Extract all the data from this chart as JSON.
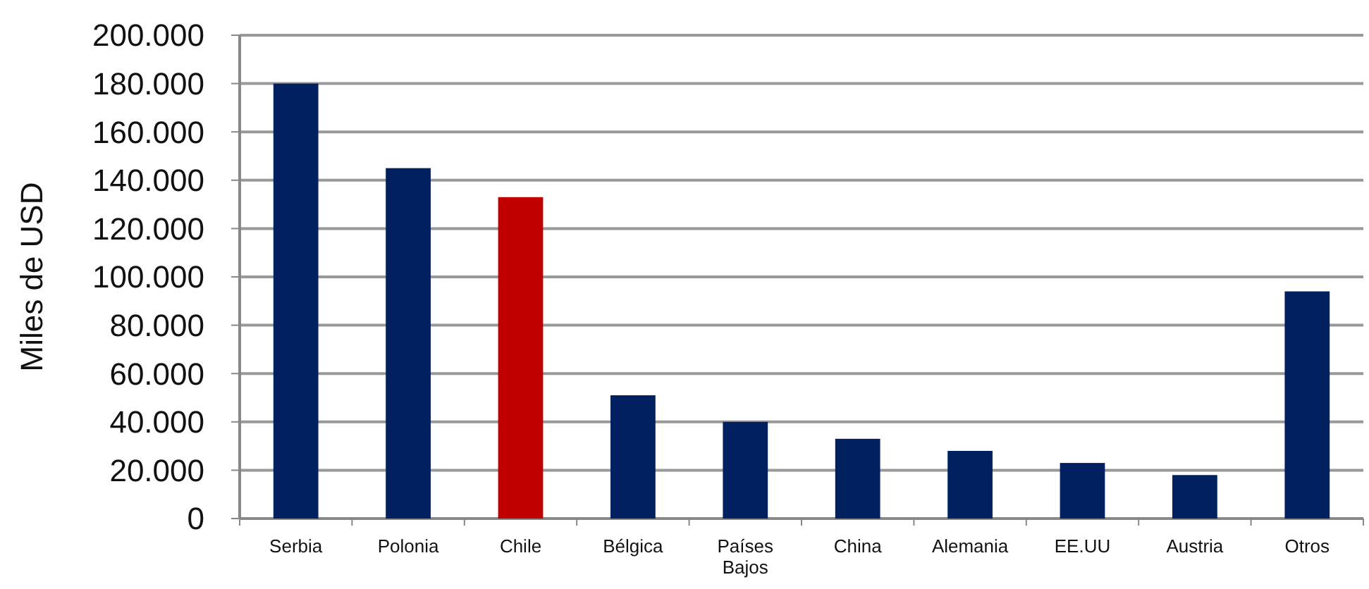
{
  "chart_data": {
    "type": "bar",
    "ylabel": "Miles de USD",
    "categories": [
      "Serbia",
      "Polonia",
      "Chile",
      "Bélgica",
      "Países Bajos",
      "China",
      "Alemania",
      "EE.UU",
      "Austria",
      "Otros"
    ],
    "values": [
      180000,
      145000,
      133000,
      51000,
      40000,
      33000,
      28000,
      23000,
      18000,
      94000
    ],
    "colors": [
      "#002060",
      "#002060",
      "#c00000",
      "#002060",
      "#002060",
      "#002060",
      "#002060",
      "#002060",
      "#002060",
      "#002060"
    ],
    "ylim": [
      0,
      200000
    ],
    "yticks": [
      {
        "value": 0,
        "label": "0"
      },
      {
        "value": 20000,
        "label": "20.000"
      },
      {
        "value": 40000,
        "label": "40.000"
      },
      {
        "value": 60000,
        "label": "60.000"
      },
      {
        "value": 80000,
        "label": "80.000"
      },
      {
        "value": 100000,
        "label": "100.000"
      },
      {
        "value": 120000,
        "label": "120.000"
      },
      {
        "value": 140000,
        "label": "140.000"
      },
      {
        "value": 160000,
        "label": "160.000"
      },
      {
        "value": 180000,
        "label": "180.000"
      },
      {
        "value": 200000,
        "label": "200.000"
      }
    ],
    "grid": "y"
  }
}
